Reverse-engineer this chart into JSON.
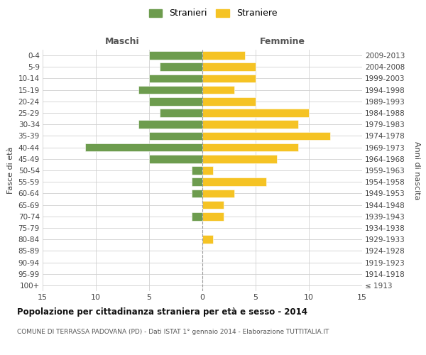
{
  "age_groups": [
    "100+",
    "95-99",
    "90-94",
    "85-89",
    "80-84",
    "75-79",
    "70-74",
    "65-69",
    "60-64",
    "55-59",
    "50-54",
    "45-49",
    "40-44",
    "35-39",
    "30-34",
    "25-29",
    "20-24",
    "15-19",
    "10-14",
    "5-9",
    "0-4"
  ],
  "birth_years": [
    "≤ 1913",
    "1914-1918",
    "1919-1923",
    "1924-1928",
    "1929-1933",
    "1934-1938",
    "1939-1943",
    "1944-1948",
    "1949-1953",
    "1954-1958",
    "1959-1963",
    "1964-1968",
    "1969-1973",
    "1974-1978",
    "1979-1983",
    "1984-1988",
    "1989-1993",
    "1994-1998",
    "1999-2003",
    "2004-2008",
    "2009-2013"
  ],
  "stranieri": [
    0,
    0,
    0,
    0,
    0,
    0,
    1,
    0,
    1,
    1,
    1,
    5,
    11,
    5,
    6,
    4,
    5,
    6,
    5,
    4,
    5
  ],
  "straniere": [
    0,
    0,
    0,
    0,
    1,
    0,
    2,
    2,
    3,
    6,
    1,
    7,
    9,
    12,
    9,
    10,
    5,
    3,
    5,
    5,
    4
  ],
  "color_stranieri": "#6d9c4e",
  "color_straniere": "#f5c324",
  "xlim": 15,
  "title": "Popolazione per cittadinanza straniera per età e sesso - 2014",
  "subtitle": "COMUNE DI TERRASSA PADOVANA (PD) - Dati ISTAT 1° gennaio 2014 - Elaborazione TUTTITALIA.IT",
  "ylabel_left": "Fasce di età",
  "ylabel_right": "Anni di nascita",
  "xlabel_left": "Maschi",
  "xlabel_right": "Femmine",
  "legend_stranieri": "Stranieri",
  "legend_straniere": "Straniere",
  "bg_color": "#ffffff",
  "grid_color": "#d0d0d0"
}
